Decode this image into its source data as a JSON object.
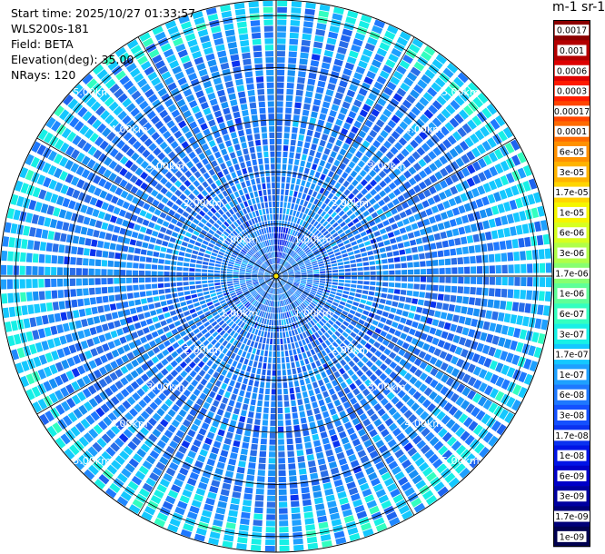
{
  "info": {
    "start_time": "Start time: 2025/10/27 01:33:57",
    "device": "WLS200s-181",
    "field": "Field: BETA",
    "elevation": "Elevation(deg): 35.00",
    "nrays": "NRays: 120"
  },
  "colorbar": {
    "unit_title": "m-1 sr-1",
    "levels": [
      "0.0017",
      "0.001",
      "0.0006",
      "0.0003",
      "0.00017",
      "0.0001",
      "6e-05",
      "3e-05",
      "1.7e-05",
      "1e-05",
      "6e-06",
      "3e-06",
      "1.7e-06",
      "1e-06",
      "6e-07",
      "3e-07",
      "1.7e-07",
      "1e-07",
      "6e-08",
      "3e-08",
      "1.7e-08",
      "1e-08",
      "6e-09",
      "3e-09",
      "1.7e-09",
      "1e-09"
    ],
    "colors": [
      "#8b0000",
      "#b30000",
      "#dd0000",
      "#ff1a00",
      "#ff4400",
      "#ff6a00",
      "#ff9000",
      "#ffb300",
      "#ffd500",
      "#f5f500",
      "#d7ff1f",
      "#b0ff48",
      "#88ff70",
      "#5fff98",
      "#33ffc0",
      "#17f0e6",
      "#14c8ff",
      "#1ea0ff",
      "#1e78ff",
      "#1450ff",
      "#0a32f0",
      "#0014e6",
      "#0000c8",
      "#0000a0",
      "#000078",
      "#000050"
    ]
  },
  "chart_data": {
    "type": "heatmap",
    "projection": "polar-ppi",
    "n_rays": 120,
    "elevation_deg": 35.0,
    "range_rings_km": [
      1,
      2,
      3,
      4,
      5
    ],
    "ring_labels": [
      "1.00km",
      "2.00km",
      "3.00km",
      "4.00km",
      "5.00km"
    ],
    "max_range_km": 5.3,
    "dominant_value_range": [
      1e-08,
      1e-07
    ],
    "notes_visible": "near-range enhancement toward north; edge ring lighter (cyan/green)"
  }
}
